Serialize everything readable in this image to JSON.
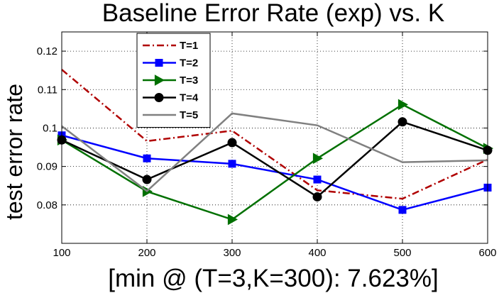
{
  "chart_data": {
    "type": "line",
    "title": "Baseline Error Rate (exp) vs. K",
    "xlabel": "[min @ (T=3,K=300): 7.623%]",
    "ylabel": "test error rate",
    "x": [
      100,
      200,
      300,
      400,
      500,
      600
    ],
    "xlim": [
      100,
      600
    ],
    "ylim": [
      0.07,
      0.125
    ],
    "xticks": [
      "100",
      "200",
      "300",
      "400",
      "500",
      "600"
    ],
    "yticks": [
      "0.08",
      "0.09",
      "0.1",
      "0.11",
      "0.12"
    ],
    "grid": "vertical dotted",
    "legend_position": "top-left",
    "series": [
      {
        "name": "T=1",
        "color": "#b00000",
        "style": "dash-dot",
        "marker": "none",
        "values": [
          0.1152,
          0.0966,
          0.0993,
          0.0838,
          0.0816,
          0.0918
        ]
      },
      {
        "name": "T=2",
        "color": "#0000ff",
        "style": "solid",
        "marker": "square",
        "values": [
          0.0981,
          0.0921,
          0.0907,
          0.0866,
          0.0787,
          0.0845
        ]
      },
      {
        "name": "T=3",
        "color": "#007000",
        "style": "solid",
        "marker": "triangle-right",
        "values": [
          0.0969,
          0.0835,
          0.0762,
          0.0921,
          0.1061,
          0.0947
        ]
      },
      {
        "name": "T=4",
        "color": "#000000",
        "style": "solid",
        "marker": "circle",
        "values": [
          0.0969,
          0.0866,
          0.0962,
          0.0821,
          0.1016,
          0.0942
        ]
      },
      {
        "name": "T=5",
        "color": "#808080",
        "style": "solid",
        "marker": "none",
        "values": [
          0.1005,
          0.0836,
          0.1038,
          0.1007,
          0.0911,
          0.0916
        ]
      }
    ]
  }
}
